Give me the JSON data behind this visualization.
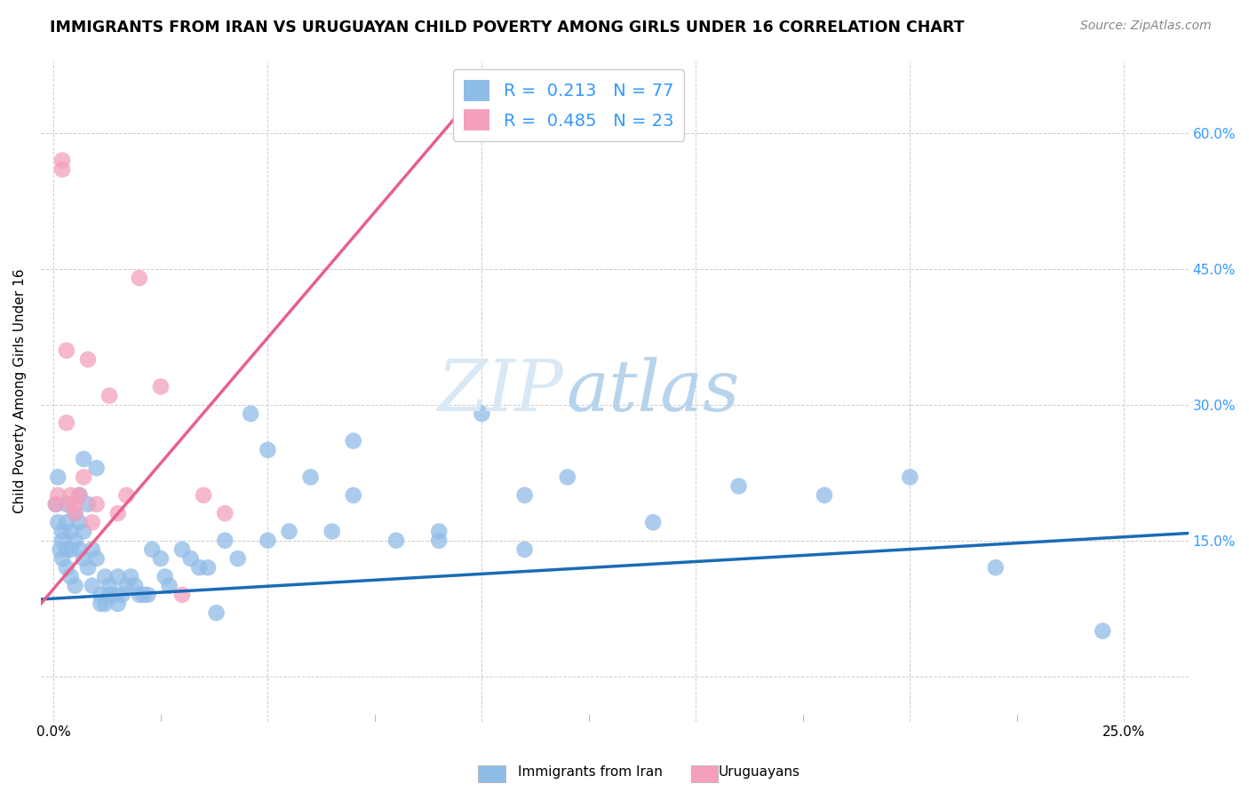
{
  "title": "IMMIGRANTS FROM IRAN VS URUGUAYAN CHILD POVERTY AMONG GIRLS UNDER 16 CORRELATION CHART",
  "source": "Source: ZipAtlas.com",
  "ylabel": "Child Poverty Among Girls Under 16",
  "x_ticks": [
    0.0,
    0.05,
    0.1,
    0.15,
    0.2,
    0.25
  ],
  "y_ticks": [
    0.0,
    0.15,
    0.3,
    0.45,
    0.6
  ],
  "xlim": [
    -0.003,
    0.265
  ],
  "ylim": [
    -0.05,
    0.68
  ],
  "blue_scatter_x": [
    0.0005,
    0.001,
    0.001,
    0.0015,
    0.002,
    0.002,
    0.002,
    0.003,
    0.003,
    0.003,
    0.003,
    0.004,
    0.004,
    0.004,
    0.005,
    0.005,
    0.005,
    0.006,
    0.006,
    0.006,
    0.007,
    0.007,
    0.007,
    0.008,
    0.008,
    0.009,
    0.009,
    0.01,
    0.01,
    0.011,
    0.011,
    0.012,
    0.012,
    0.013,
    0.013,
    0.014,
    0.015,
    0.015,
    0.016,
    0.017,
    0.018,
    0.019,
    0.02,
    0.021,
    0.022,
    0.023,
    0.025,
    0.026,
    0.027,
    0.03,
    0.032,
    0.034,
    0.036,
    0.038,
    0.04,
    0.043,
    0.046,
    0.05,
    0.055,
    0.06,
    0.065,
    0.07,
    0.08,
    0.09,
    0.1,
    0.11,
    0.12,
    0.14,
    0.16,
    0.18,
    0.2,
    0.22,
    0.245,
    0.05,
    0.07,
    0.09,
    0.11
  ],
  "blue_scatter_y": [
    0.19,
    0.22,
    0.17,
    0.14,
    0.16,
    0.15,
    0.13,
    0.19,
    0.17,
    0.14,
    0.12,
    0.16,
    0.14,
    0.11,
    0.18,
    0.15,
    0.1,
    0.2,
    0.17,
    0.14,
    0.24,
    0.16,
    0.13,
    0.19,
    0.12,
    0.14,
    0.1,
    0.23,
    0.13,
    0.09,
    0.08,
    0.11,
    0.08,
    0.1,
    0.09,
    0.09,
    0.11,
    0.08,
    0.09,
    0.1,
    0.11,
    0.1,
    0.09,
    0.09,
    0.09,
    0.14,
    0.13,
    0.11,
    0.1,
    0.14,
    0.13,
    0.12,
    0.12,
    0.07,
    0.15,
    0.13,
    0.29,
    0.15,
    0.16,
    0.22,
    0.16,
    0.2,
    0.15,
    0.15,
    0.29,
    0.2,
    0.22,
    0.17,
    0.21,
    0.2,
    0.22,
    0.12,
    0.05,
    0.25,
    0.26,
    0.16,
    0.14
  ],
  "pink_scatter_x": [
    0.0005,
    0.001,
    0.002,
    0.002,
    0.003,
    0.003,
    0.004,
    0.004,
    0.005,
    0.005,
    0.006,
    0.007,
    0.008,
    0.009,
    0.01,
    0.013,
    0.015,
    0.017,
    0.02,
    0.025,
    0.03,
    0.035,
    0.04
  ],
  "pink_scatter_y": [
    0.19,
    0.2,
    0.57,
    0.56,
    0.36,
    0.28,
    0.2,
    0.19,
    0.19,
    0.18,
    0.2,
    0.22,
    0.35,
    0.17,
    0.19,
    0.31,
    0.18,
    0.2,
    0.44,
    0.32,
    0.09,
    0.2,
    0.18
  ],
  "blue_line_x": [
    -0.003,
    0.265
  ],
  "blue_line_y": [
    0.085,
    0.158
  ],
  "pink_line_x": [
    -0.003,
    0.097
  ],
  "pink_line_y": [
    0.08,
    0.635
  ],
  "blue_color": "#90bce8",
  "pink_color": "#f4a0bc",
  "blue_line_color": "#1a6bb5",
  "pink_line_color": "#e8608a",
  "watermark_zip": "ZIP",
  "watermark_atlas": "atlas",
  "background_color": "#ffffff",
  "grid_color": "#cccccc",
  "title_fontsize": 12.5,
  "axis_label_fontsize": 11,
  "tick_label_color_right": "#3399ff",
  "legend_text_color": "#3399ff",
  "legend_label_blue": "R =  0.213   N = 77",
  "legend_label_pink": "R =  0.485   N = 23",
  "bottom_legend_blue": "Immigrants from Iran",
  "bottom_legend_pink": "Uruguayans"
}
